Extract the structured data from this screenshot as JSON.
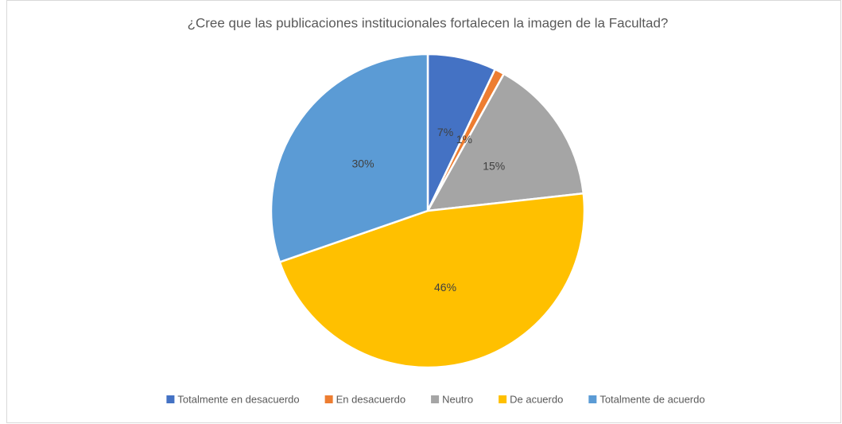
{
  "chart_data": {
    "type": "pie",
    "title": "¿Cree que las publicaciones institucionales fortalecen la imagen de la Facultad?",
    "categories": [
      "Totalmente en desacuerdo",
      "En desacuerdo",
      "Neutro",
      "De acuerdo",
      "Totalmente de acuerdo"
    ],
    "values": [
      7,
      1,
      15,
      46,
      30
    ],
    "value_labels": [
      "7%",
      "1%",
      "15%",
      "46%",
      "30%"
    ],
    "colors": [
      "#4472c4",
      "#ed7d31",
      "#a5a5a5",
      "#ffc000",
      "#5b9bd5"
    ],
    "legend": "bottom"
  }
}
